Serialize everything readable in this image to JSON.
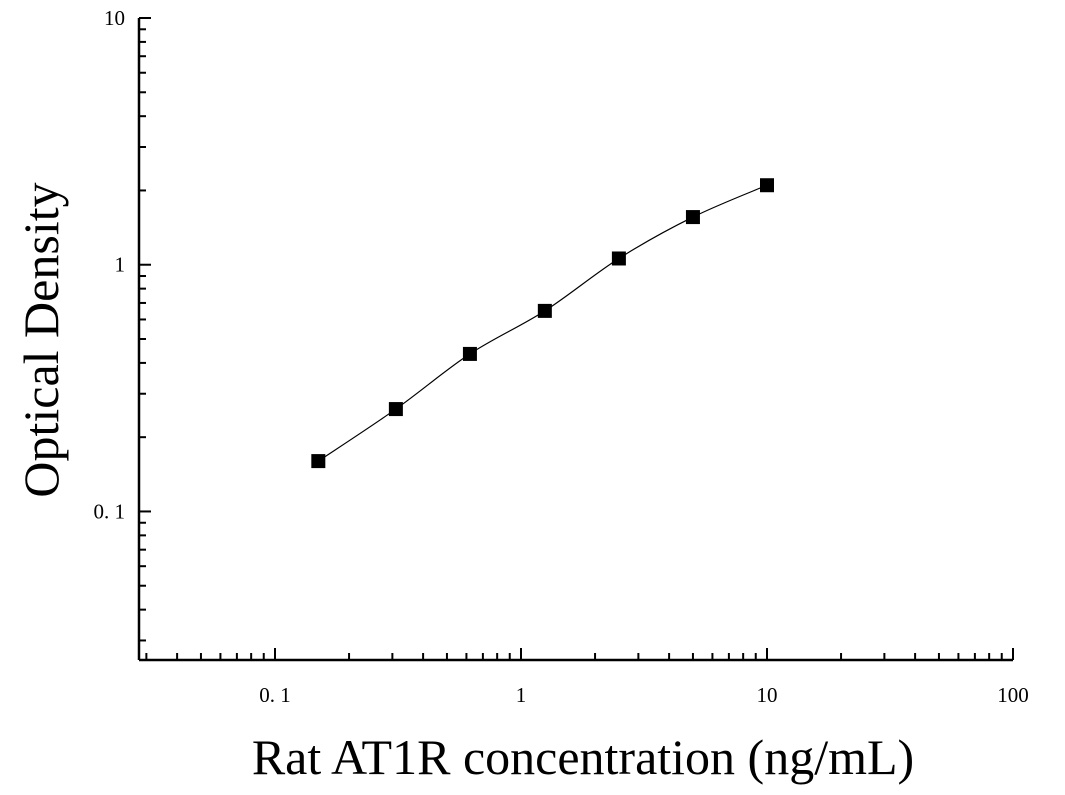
{
  "chart_data": {
    "type": "scatter",
    "title": "",
    "xlabel": "Rat AT1R concentration (ng/mL)",
    "ylabel": "Optical Density",
    "x_scale": "log",
    "y_scale": "log",
    "xlim": [
      0.028,
      100
    ],
    "ylim": [
      0.025,
      10
    ],
    "x_tick_labels": [
      "0. 1",
      "1",
      "10",
      "100"
    ],
    "y_tick_labels": [
      "0. 1",
      "1",
      "10"
    ],
    "grid": false,
    "legend": "none",
    "series": [
      {
        "marker": "square",
        "fit": "smooth curve",
        "x": [
          0.15,
          0.31,
          0.62,
          1.25,
          2.5,
          5,
          10
        ],
        "y": [
          0.16,
          0.26,
          0.435,
          0.65,
          1.06,
          1.56,
          2.1
        ]
      }
    ],
    "colors": {
      "marker": "#000000",
      "line": "#000000",
      "axis": "#000000"
    }
  }
}
